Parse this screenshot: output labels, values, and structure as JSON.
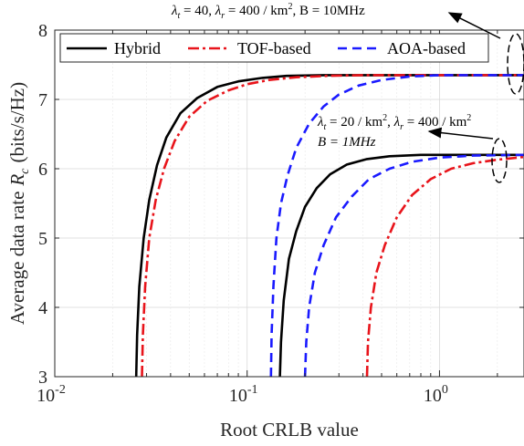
{
  "chart_data": {
    "type": "line",
    "xlabel": "Root CRLB value",
    "ylabel": "Average data rate",
    "ylabel_symbol": "R",
    "ylabel_subscript": "c",
    "ylabel_unit": "(bits/s/Hz)",
    "x_scale": "log",
    "xlim": [
      0.01,
      2.75
    ],
    "ylim": [
      3,
      8
    ],
    "x_ticks": [
      {
        "value": 0.01,
        "base": "10",
        "exp": "-2"
      },
      {
        "value": 0.1,
        "base": "10",
        "exp": "-1"
      },
      {
        "value": 1,
        "base": "10",
        "exp": "0"
      }
    ],
    "y_ticks": [
      3,
      4,
      5,
      6,
      7,
      8
    ],
    "grid": true,
    "legend_position": "top",
    "series": [
      {
        "name": "Hybrid",
        "color": "#000000",
        "dash": "solid",
        "group": 1,
        "x": [
          0.0265,
          0.0268,
          0.0275,
          0.029,
          0.031,
          0.034,
          0.038,
          0.045,
          0.055,
          0.07,
          0.09,
          0.12,
          0.16,
          0.25,
          0.4,
          1.0,
          2.75
        ],
        "y": [
          3.0,
          3.6,
          4.3,
          5.0,
          5.55,
          6.05,
          6.45,
          6.8,
          7.02,
          7.18,
          7.26,
          7.31,
          7.34,
          7.35,
          7.35,
          7.35,
          7.35
        ]
      },
      {
        "name": "TOF-based",
        "color": "#e8141b",
        "dash": "dashdot",
        "group": 1,
        "x": [
          0.0284,
          0.0287,
          0.0295,
          0.031,
          0.0335,
          0.037,
          0.042,
          0.05,
          0.062,
          0.08,
          0.1,
          0.13,
          0.18,
          0.26,
          0.4,
          1.0,
          2.75
        ],
        "y": [
          3.0,
          3.6,
          4.3,
          5.0,
          5.55,
          6.0,
          6.4,
          6.75,
          6.98,
          7.13,
          7.22,
          7.28,
          7.32,
          7.34,
          7.35,
          7.35,
          7.35
        ]
      },
      {
        "name": "AOA-based",
        "color": "#1a1aff",
        "dash": "dash",
        "group": 1,
        "x": [
          0.133,
          0.134,
          0.137,
          0.142,
          0.15,
          0.162,
          0.18,
          0.21,
          0.25,
          0.3,
          0.38,
          0.5,
          0.7,
          1.0,
          1.5,
          2.75
        ],
        "y": [
          3.0,
          3.6,
          4.3,
          5.0,
          5.5,
          5.9,
          6.3,
          6.65,
          6.9,
          7.07,
          7.2,
          7.28,
          7.33,
          7.35,
          7.35,
          7.35
        ]
      },
      {
        "group": 2,
        "color": "#000000",
        "dash": "solid",
        "x": [
          0.148,
          0.15,
          0.155,
          0.165,
          0.18,
          0.2,
          0.23,
          0.27,
          0.33,
          0.42,
          0.55,
          0.8,
          1.2,
          2.75
        ],
        "y": [
          3.0,
          3.5,
          4.1,
          4.7,
          5.1,
          5.45,
          5.72,
          5.92,
          6.06,
          6.14,
          6.18,
          6.2,
          6.2,
          6.2
        ]
      },
      {
        "group": 2,
        "color": "#e8141b",
        "dash": "dashdot",
        "x": [
          0.42,
          0.425,
          0.44,
          0.47,
          0.52,
          0.6,
          0.72,
          0.9,
          1.15,
          1.5,
          2.0,
          2.75
        ],
        "y": [
          3.0,
          3.5,
          4.0,
          4.5,
          4.9,
          5.3,
          5.62,
          5.85,
          6.0,
          6.08,
          6.13,
          6.17
        ]
      },
      {
        "group": 2,
        "color": "#1a1aff",
        "dash": "dash",
        "x": [
          0.2,
          0.203,
          0.21,
          0.225,
          0.25,
          0.29,
          0.35,
          0.43,
          0.55,
          0.72,
          1.0,
          1.5,
          2.75
        ],
        "y": [
          3.0,
          3.5,
          4.0,
          4.5,
          4.9,
          5.3,
          5.6,
          5.85,
          6.0,
          6.1,
          6.16,
          6.19,
          6.2
        ]
      }
    ],
    "annotations": [
      {
        "lines": [
          "λt = 40, λr = 400 / km², B = 10MHz"
        ],
        "target_y": 7.35
      },
      {
        "lines": [
          "λt = 20 / km², λr = 400 / km²",
          "B = 1MHz"
        ],
        "target_y": 6.2
      }
    ],
    "annotation_text": {
      "a1": "λ",
      "a1_t": "t",
      "a1_eq1": " = 40, ",
      "a1_l2": "λ",
      "a1_r": "r",
      "a1_eq2": " = 400 / km",
      "a1_sq": "2",
      "a1_b": ", B = 10MHz",
      "a2_l1": "λ",
      "a2_t": "t",
      "a2_eq1": " = 20 / km",
      "a2_sq1": "2",
      "a2_mid": ", ",
      "a2_l2": "λ",
      "a2_r": "r",
      "a2_eq2": " = 400 / km",
      "a2_sq2": "2",
      "a2_b": "B = 1MHz"
    }
  }
}
